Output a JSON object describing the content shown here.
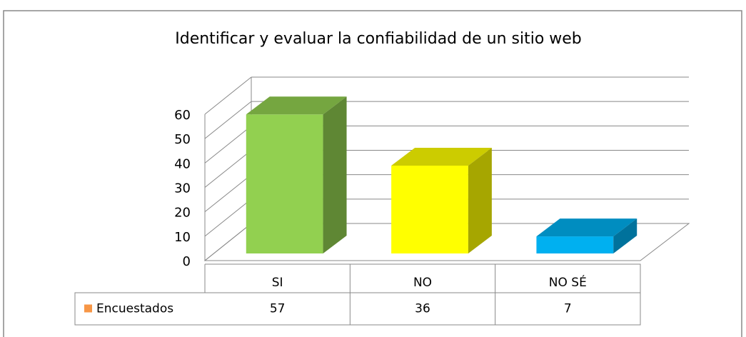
{
  "chart_data": {
    "type": "bar3d",
    "title": "Identificar y evaluar la confiabilidad de un sitio web",
    "categories": [
      "SI",
      "NO",
      "NO SÉ"
    ],
    "series": [
      {
        "name": "Encuestados",
        "color": "#f79646",
        "values": [
          57,
          36,
          7
        ],
        "bar_colors": [
          "#92d050",
          "#ffff00",
          "#00b0f0"
        ]
      }
    ],
    "ylim": [
      0,
      60
    ],
    "yticks": [
      0,
      10,
      20,
      30,
      40,
      50,
      60
    ],
    "grid": true
  }
}
